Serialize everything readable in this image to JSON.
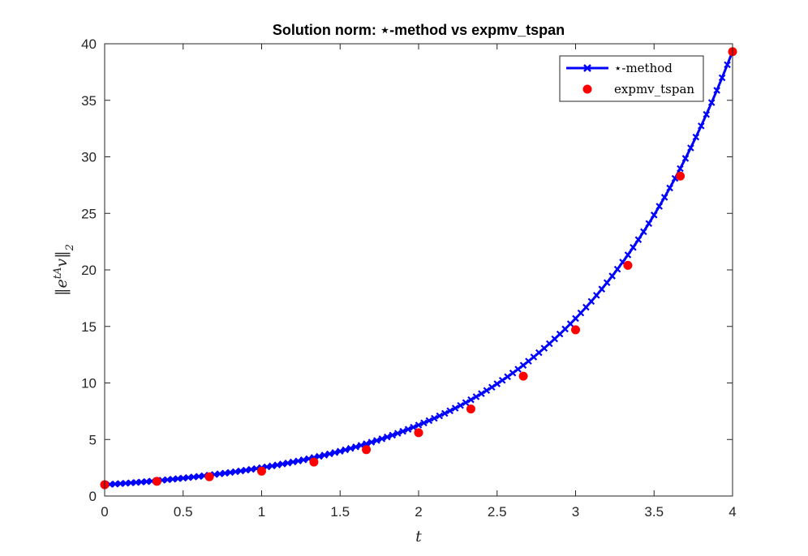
{
  "chart_data": {
    "type": "line",
    "title": "Solution norm: ⋆-method vs expmv_tspan",
    "xlabel": "t",
    "ylabel": "||e^{tA}v||_2",
    "xlim": [
      0,
      4
    ],
    "ylim": [
      0,
      40
    ],
    "xticks": [
      0,
      0.5,
      1,
      1.5,
      2,
      2.5,
      3,
      3.5,
      4
    ],
    "yticks": [
      0,
      5,
      10,
      15,
      20,
      25,
      30,
      35,
      40
    ],
    "grid": false,
    "legend_position": "top-right",
    "series": [
      {
        "name": "⋆-method",
        "style": "line-with-x-markers",
        "color": "#0000ff",
        "model": "y = e^(0.918 t)",
        "t_start": 0,
        "t_end": 4,
        "points": 121
      },
      {
        "name": "expmv_tspan",
        "style": "markers",
        "color": "#ff0000",
        "x": [
          0,
          0.333,
          0.667,
          1,
          1.333,
          1.667,
          2,
          2.333,
          2.667,
          3,
          3.333,
          3.667,
          4
        ],
        "y": [
          1.0,
          1.3,
          1.7,
          2.2,
          3.0,
          4.1,
          5.6,
          7.7,
          10.6,
          14.7,
          20.4,
          28.3,
          39.3
        ]
      }
    ]
  }
}
